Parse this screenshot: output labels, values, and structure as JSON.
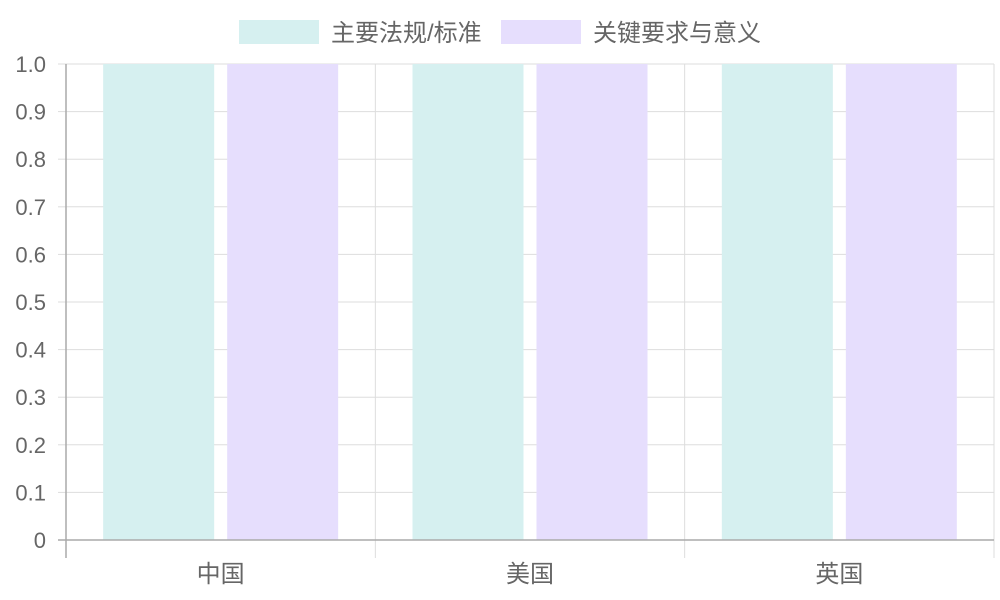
{
  "chart_data": {
    "type": "bar",
    "categories": [
      "中国",
      "美国",
      "英国"
    ],
    "series": [
      {
        "name": "主要法规/标准",
        "values": [
          1.0,
          1.0,
          1.0
        ],
        "color": "#d6f0f0"
      },
      {
        "name": "关键要求与意义",
        "values": [
          1.0,
          1.0,
          1.0
        ],
        "color": "#e6defd"
      }
    ],
    "ylim": [
      0,
      1.0
    ],
    "yticks": [
      "0",
      "0.1",
      "0.2",
      "0.3",
      "0.4",
      "0.5",
      "0.6",
      "0.7",
      "0.8",
      "0.9",
      "1.0"
    ],
    "grid": true,
    "legend_position": "top-center"
  }
}
